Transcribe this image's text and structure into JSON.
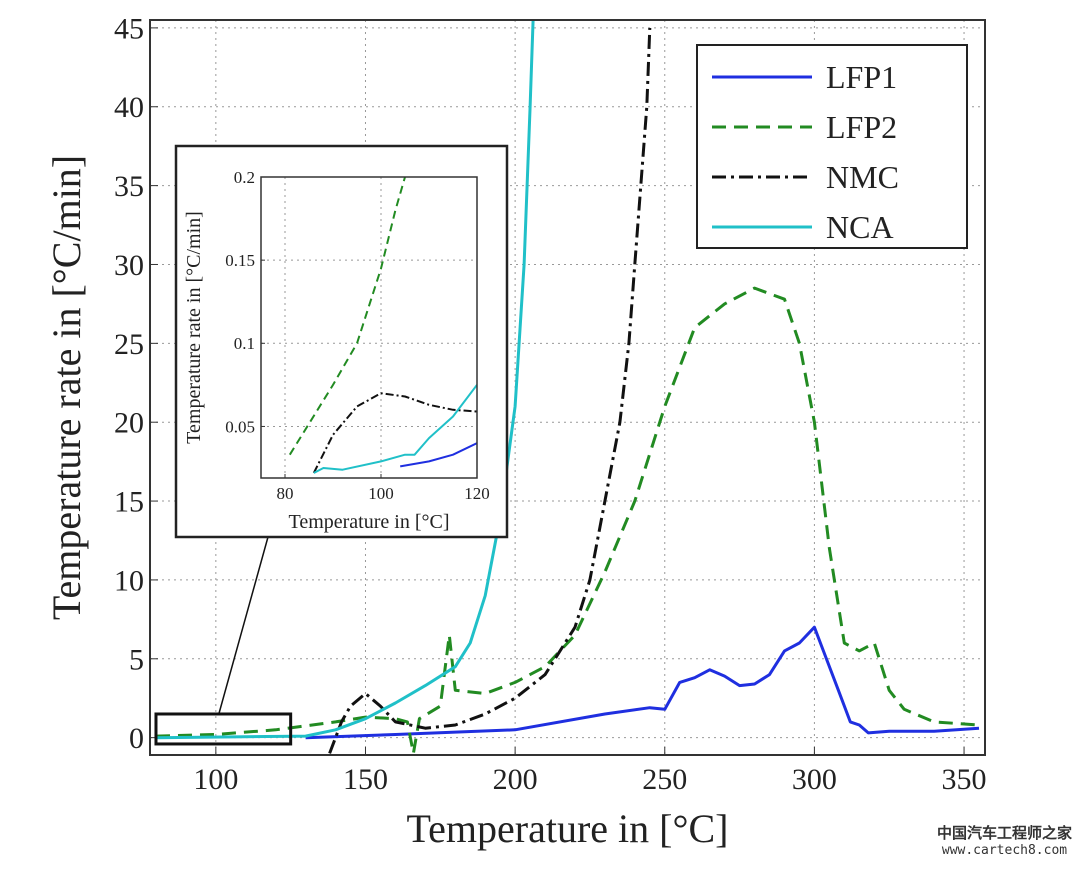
{
  "chart_data": [
    {
      "type": "line",
      "xlabel": "Temperature in [°C]",
      "ylabel": "Temperature rate in [°C/min]",
      "xlim": [
        78,
        357
      ],
      "ylim": [
        -1.1,
        45.5
      ],
      "xticks": [
        100,
        150,
        200,
        250,
        300,
        350
      ],
      "yticks": [
        0,
        5,
        10,
        15,
        20,
        25,
        30,
        35,
        40,
        45
      ],
      "grid": true,
      "legend_position": "top-right",
      "series": [
        {
          "name": "LFP1",
          "color": "#1f2fe0",
          "style": "solid",
          "x": [
            130,
            160,
            200,
            230,
            245,
            250,
            255,
            260,
            265,
            270,
            275,
            280,
            285,
            290,
            295,
            300,
            303,
            308,
            312,
            315,
            318,
            325,
            340,
            355
          ],
          "y": [
            0,
            0.2,
            0.5,
            1.5,
            1.9,
            1.8,
            3.5,
            3.8,
            4.3,
            3.9,
            3.3,
            3.4,
            4.0,
            5.5,
            6.0,
            7.0,
            5.5,
            3.0,
            1.0,
            0.8,
            0.3,
            0.4,
            0.4,
            0.6
          ]
        },
        {
          "name": "LFP2",
          "color": "#228b22",
          "style": "dashed",
          "x": [
            80,
            100,
            120,
            140,
            150,
            160,
            164,
            166,
            168,
            175,
            178,
            180,
            190,
            200,
            210,
            220,
            230,
            240,
            250,
            260,
            270,
            280,
            290,
            295,
            300,
            305,
            310,
            315,
            320,
            325,
            330,
            340,
            355
          ],
          "y": [
            0.1,
            0.2,
            0.5,
            1.0,
            1.3,
            1.2,
            1.0,
            -1.0,
            1.2,
            2.0,
            6.5,
            3.0,
            2.8,
            3.5,
            4.5,
            6.5,
            10.5,
            15,
            21,
            26,
            27.5,
            28.5,
            27.8,
            25,
            20,
            12,
            6,
            5.5,
            6,
            3,
            1.8,
            1.0,
            0.8
          ]
        },
        {
          "name": "NMC",
          "color": "#111111",
          "style": "dashdot",
          "x": [
            138,
            142,
            145,
            150,
            155,
            160,
            170,
            180,
            190,
            200,
            210,
            220,
            225,
            230,
            235,
            238,
            240,
            242,
            244,
            245
          ],
          "y": [
            -1,
            1,
            2,
            2.8,
            2,
            1,
            0.6,
            0.8,
            1.5,
            2.5,
            4,
            7,
            10,
            15,
            20,
            25,
            30,
            35,
            40,
            45
          ]
        },
        {
          "name": "NCA",
          "color": "#20c0c8",
          "style": "solid",
          "x": [
            80,
            130,
            140,
            150,
            160,
            170,
            180,
            185,
            190,
            195,
            200,
            203,
            205,
            206
          ],
          "y": [
            0,
            0.1,
            0.5,
            1.2,
            2.2,
            3.3,
            4.5,
            6,
            9,
            14,
            21,
            30,
            40,
            45.5
          ]
        }
      ]
    },
    {
      "type": "line",
      "role": "inset",
      "xlabel": "Temperature in [°C]",
      "ylabel": "Temperature rate in [°C/min]",
      "xlim": [
        75,
        120
      ],
      "ylim": [
        0.019,
        0.2
      ],
      "xticks": [
        80,
        100,
        120
      ],
      "yticks": [
        0.05,
        0.1,
        0.15,
        0.2
      ],
      "ytick_labels": [
        "0.05",
        "0.1",
        "0.15",
        "0.2"
      ],
      "grid": true,
      "series": [
        {
          "name": "LFP1",
          "color": "#1f2fe0",
          "style": "solid",
          "x": [
            104,
            110,
            115,
            120
          ],
          "y": [
            0.026,
            0.029,
            0.033,
            0.04
          ]
        },
        {
          "name": "LFP2",
          "color": "#228b22",
          "style": "dashed",
          "x": [
            81,
            90,
            95,
            100,
            103,
            105
          ],
          "y": [
            0.033,
            0.075,
            0.1,
            0.145,
            0.18,
            0.2
          ]
        },
        {
          "name": "NMC",
          "color": "#111111",
          "style": "dashdot",
          "x": [
            86,
            90,
            95,
            100,
            105,
            110,
            115,
            120
          ],
          "y": [
            0.022,
            0.045,
            0.062,
            0.07,
            0.068,
            0.063,
            0.06,
            0.059
          ]
        },
        {
          "name": "NCA",
          "color": "#20c0c8",
          "style": "solid",
          "x": [
            86,
            88,
            92,
            100,
            105,
            107,
            110,
            115,
            120
          ],
          "y": [
            0.022,
            0.025,
            0.024,
            0.029,
            0.033,
            0.033,
            0.043,
            0.056,
            0.075
          ]
        }
      ]
    }
  ],
  "watermark": {
    "chinese": "中国汽车工程师之家",
    "url": "www.cartech8.com"
  }
}
